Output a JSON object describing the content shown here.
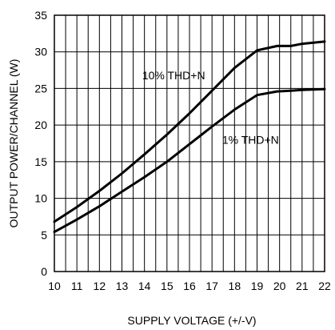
{
  "chart_data": {
    "type": "line",
    "title": "",
    "xlabel": "SUPPLY VOLTAGE (+/-V)",
    "ylabel": "OUTPUT POWER/CHANNEL (W)",
    "xlim": [
      10,
      22
    ],
    "ylim": [
      0,
      35
    ],
    "x_ticks": [
      10,
      11,
      12,
      13,
      14,
      15,
      16,
      17,
      18,
      19,
      20,
      21,
      22
    ],
    "y_ticks": [
      0,
      5,
      10,
      15,
      20,
      25,
      30,
      35
    ],
    "x_minor_step": 0.5,
    "grid": true,
    "legend": "none",
    "series": [
      {
        "name": "10% THD+N",
        "color": "#000000",
        "x": [
          10,
          11,
          12,
          13,
          14,
          15,
          16,
          17,
          18,
          19,
          19.9,
          20.5,
          21,
          22
        ],
        "y": [
          6.8,
          8.8,
          11.0,
          13.4,
          16.0,
          18.7,
          21.6,
          24.7,
          27.8,
          30.2,
          30.8,
          30.8,
          31.1,
          31.4
        ]
      },
      {
        "name": "1% THD+N",
        "color": "#000000",
        "x": [
          10,
          11,
          12,
          13,
          14,
          15,
          16,
          17,
          18,
          19,
          19.9,
          20.5,
          21,
          22
        ],
        "y": [
          5.4,
          7.1,
          8.9,
          10.9,
          12.9,
          15.0,
          17.4,
          19.8,
          22.1,
          24.1,
          24.6,
          24.7,
          24.8,
          24.9
        ]
      }
    ]
  }
}
